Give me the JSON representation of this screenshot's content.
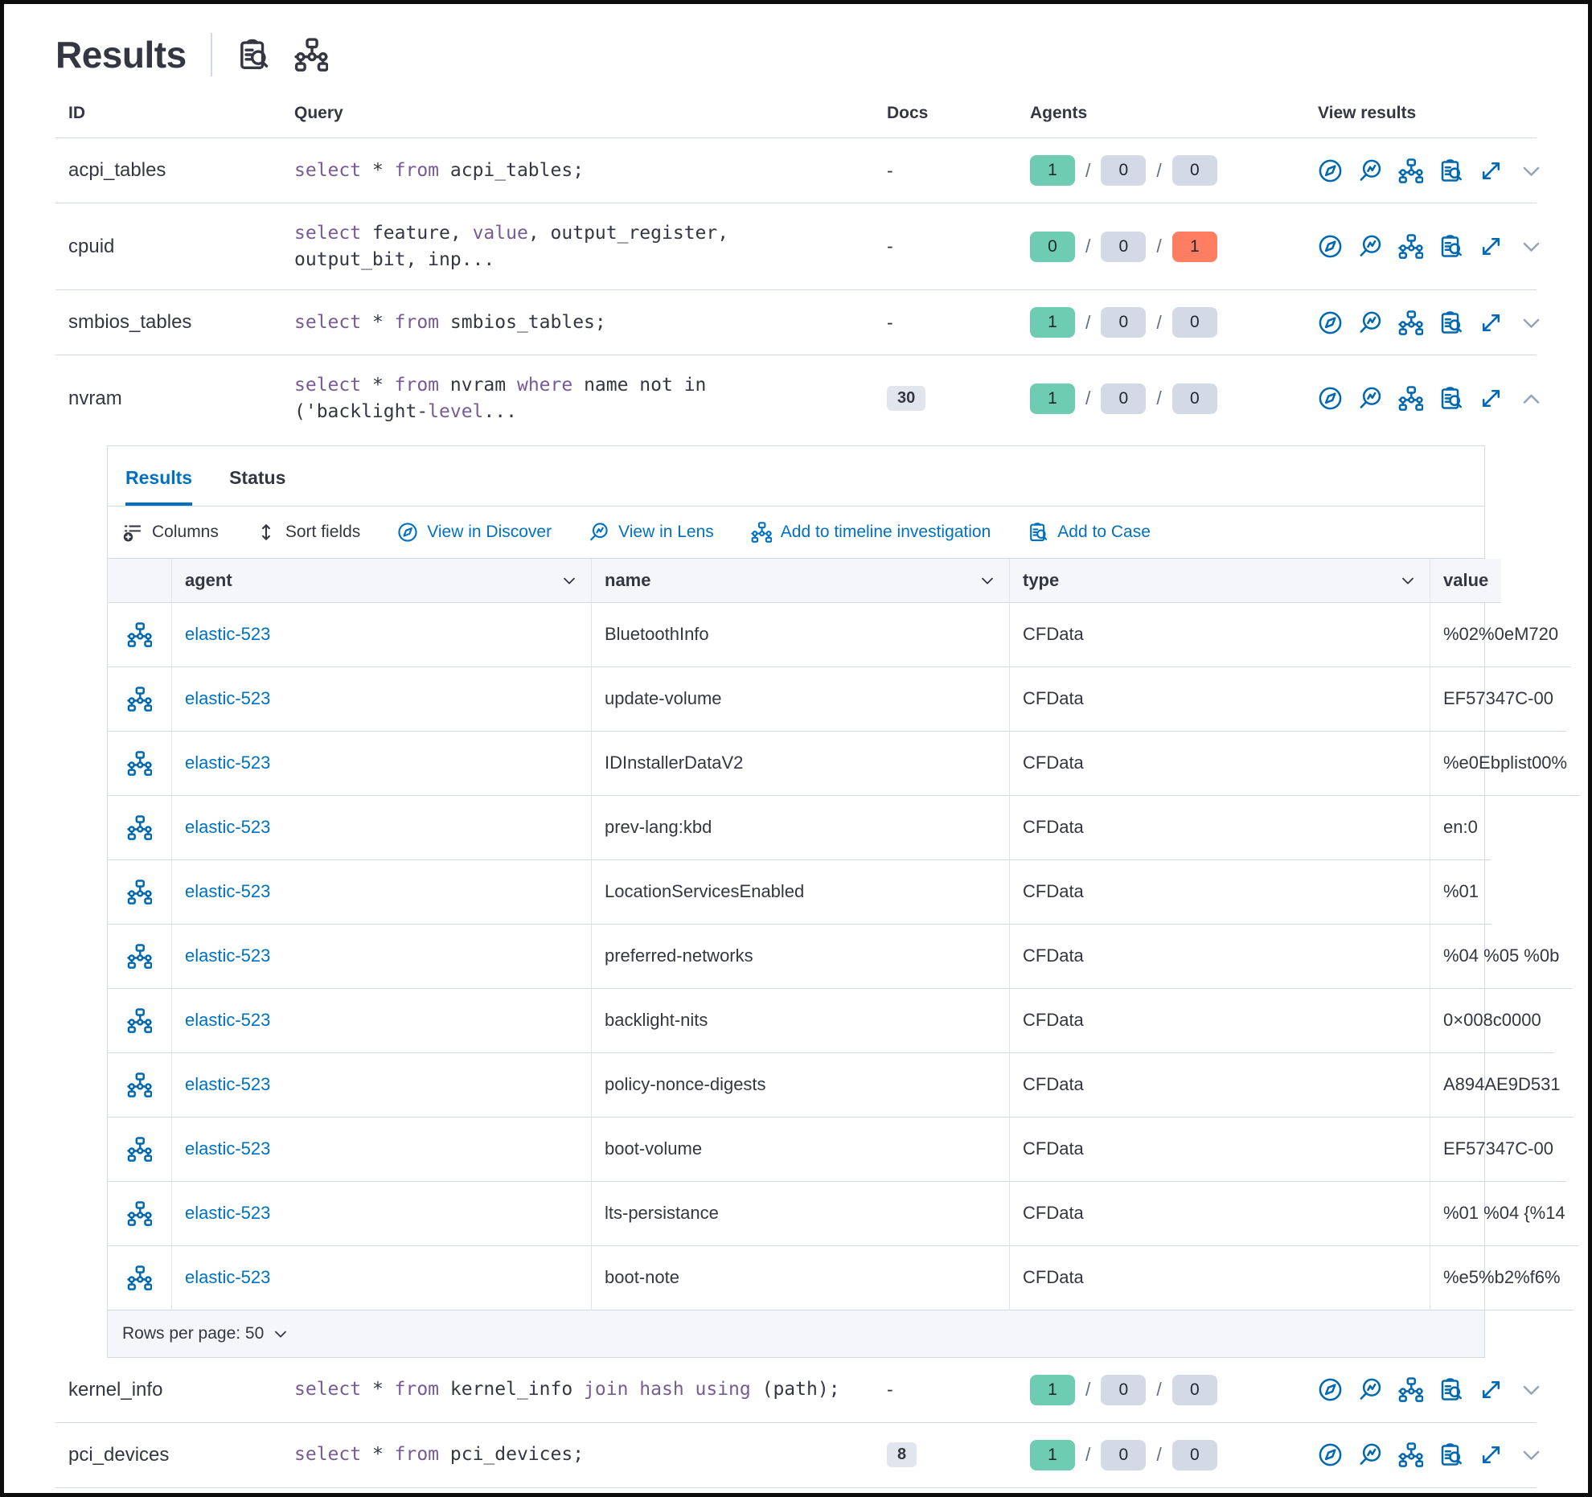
{
  "title": "Results",
  "header_icons": [
    {
      "name": "add-to-case-icon",
      "icon": "case"
    },
    {
      "name": "timeline-icon",
      "icon": "timeline"
    }
  ],
  "table": {
    "columns": [
      "ID",
      "Query",
      "Docs",
      "Agents",
      "View results"
    ],
    "rows_before": [
      {
        "id": "acpi_tables",
        "query": [
          {
            "t": "select",
            "k": 1
          },
          {
            "t": " * "
          },
          {
            "t": "from",
            "k": 1
          },
          {
            "t": " acpi_tables;"
          }
        ],
        "docs": "-",
        "docs_badge": 0,
        "agents": [
          1,
          0,
          0
        ],
        "expanded": 0
      },
      {
        "id": "cpuid",
        "query": [
          {
            "t": "select",
            "k": 1
          },
          {
            "t": " feature, "
          },
          {
            "t": "value",
            "k": 1
          },
          {
            "t": ", output_register,\noutput_bit, inp..."
          }
        ],
        "docs": "-",
        "docs_badge": 0,
        "agents": [
          0,
          0,
          1
        ],
        "expanded": 0
      },
      {
        "id": "smbios_tables",
        "query": [
          {
            "t": "select",
            "k": 1
          },
          {
            "t": " * "
          },
          {
            "t": "from",
            "k": 1
          },
          {
            "t": " smbios_tables;"
          }
        ],
        "docs": "-",
        "docs_badge": 0,
        "agents": [
          1,
          0,
          0
        ],
        "expanded": 0
      },
      {
        "id": "nvram",
        "query": [
          {
            "t": "select",
            "k": 1
          },
          {
            "t": " * "
          },
          {
            "t": "from",
            "k": 1
          },
          {
            "t": " nvram "
          },
          {
            "t": "where",
            "k": 1
          },
          {
            "t": " name not in\n('backlight-"
          },
          {
            "t": "level",
            "k": 1
          },
          {
            "t": "..."
          }
        ],
        "docs": "30",
        "docs_badge": 1,
        "agents": [
          1,
          0,
          0
        ],
        "expanded": 1
      }
    ],
    "rows_after": [
      {
        "id": "kernel_info",
        "query": [
          {
            "t": "select",
            "k": 1
          },
          {
            "t": " * "
          },
          {
            "t": "from",
            "k": 1
          },
          {
            "t": " kernel_info "
          },
          {
            "t": "join hash using",
            "k": 1
          },
          {
            "t": " (path);"
          }
        ],
        "docs": "-",
        "docs_badge": 0,
        "agents": [
          1,
          0,
          0
        ],
        "expanded": 0
      },
      {
        "id": "pci_devices",
        "query": [
          {
            "t": "select",
            "k": 1
          },
          {
            "t": " * "
          },
          {
            "t": "from",
            "k": 1
          },
          {
            "t": " pci_devices;"
          }
        ],
        "docs": "8",
        "docs_badge": 1,
        "agents": [
          1,
          0,
          0
        ],
        "expanded": 0
      }
    ]
  },
  "panel": {
    "tabs": [
      {
        "label": "Results",
        "active": true
      },
      {
        "label": "Status",
        "active": false
      }
    ],
    "toolbar": [
      {
        "label": "Columns",
        "icon": "columns",
        "link": false,
        "name": "columns-button"
      },
      {
        "label": "Sort fields",
        "icon": "sort",
        "link": false,
        "name": "sort-fields-button"
      },
      {
        "label": "View in Discover",
        "icon": "discover",
        "link": true,
        "name": "view-in-discover-link"
      },
      {
        "label": "View in Lens",
        "icon": "lens",
        "link": true,
        "name": "view-in-lens-link"
      },
      {
        "label": "Add to timeline investigation",
        "icon": "timeline",
        "link": true,
        "name": "add-to-timeline-link"
      },
      {
        "label": "Add to Case",
        "icon": "case",
        "link": true,
        "name": "add-to-case-link"
      }
    ],
    "grid": {
      "columns": [
        {
          "label": "agent",
          "sortable": true
        },
        {
          "label": "name",
          "sortable": true
        },
        {
          "label": "type",
          "sortable": true
        },
        {
          "label": "value",
          "sortable": false
        }
      ],
      "rows": [
        {
          "agent": "elastic-523",
          "name": "BluetoothInfo",
          "type": "CFData",
          "value": "%02%0eM720"
        },
        {
          "agent": "elastic-523",
          "name": "update-volume",
          "type": "CFData",
          "value": "EF57347C-00"
        },
        {
          "agent": "elastic-523",
          "name": "IDInstallerDataV2",
          "type": "CFData",
          "value": "%e0Ebplist00%"
        },
        {
          "agent": "elastic-523",
          "name": "prev-lang:kbd",
          "type": "CFData",
          "value": "en:0"
        },
        {
          "agent": "elastic-523",
          "name": "LocationServicesEnabled",
          "type": "CFData",
          "value": "%01"
        },
        {
          "agent": "elastic-523",
          "name": "preferred-networks",
          "type": "CFData",
          "value": "%04 %05 %0b"
        },
        {
          "agent": "elastic-523",
          "name": "backlight-nits",
          "type": "CFData",
          "value": "0×008c0000"
        },
        {
          "agent": "elastic-523",
          "name": "policy-nonce-digests",
          "type": "CFData",
          "value": "A894AE9D531"
        },
        {
          "agent": "elastic-523",
          "name": "boot-volume",
          "type": "CFData",
          "value": "EF57347C-00"
        },
        {
          "agent": "elastic-523",
          "name": "lts-persistance",
          "type": "CFData",
          "value": "%01 %04 {%14"
        },
        {
          "agent": "elastic-523",
          "name": "boot-note",
          "type": "CFData",
          "value": "%e5%b2%f6%"
        }
      ]
    },
    "footer": {
      "rows_per_page_label": "Rows per page: 50"
    }
  },
  "colors": {
    "link": "#0071c2",
    "icon_blue": "#0068b0",
    "keyword_purple": "#765b96",
    "success_green": "#6dccb1",
    "neutral_badge": "#d3dae6",
    "danger_red": "#ff7e62",
    "text": "#343741",
    "border": "#d3dae6",
    "header_bg": "#f4f6fa"
  }
}
